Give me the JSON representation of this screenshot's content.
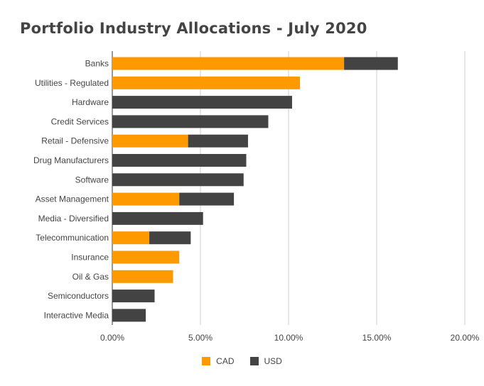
{
  "chart_data": {
    "type": "bar",
    "orientation": "horizontal",
    "stacked": true,
    "title": "Portfolio Industry Allocations - July 2020",
    "xlabel": "",
    "ylabel": "",
    "xlim": [
      0,
      20
    ],
    "x_ticks": [
      "0.00%",
      "5.00%",
      "10.00%",
      "15.00%",
      "20.00%"
    ],
    "grid": "vertical",
    "legend_position": "bottom",
    "categories": [
      "Banks",
      "Utilities - Regulated",
      "Hardware",
      "Credit Services",
      "Retail - Defensive",
      "Drug Manufacturers",
      "Software",
      "Asset Management",
      "Media - Diversified",
      "Telecommunication",
      "Insurance",
      "Oil & Gas",
      "Semiconductors",
      "Interactive Media"
    ],
    "series": [
      {
        "name": "CAD",
        "color": "#ff9900",
        "values": [
          13.15,
          10.65,
          0,
          0,
          4.3,
          0,
          0,
          3.8,
          0,
          2.1,
          3.8,
          3.45,
          0,
          0
        ]
      },
      {
        "name": "USD",
        "color": "#434343",
        "values": [
          3.05,
          0,
          10.2,
          8.85,
          3.4,
          7.6,
          7.45,
          3.1,
          5.15,
          2.35,
          0,
          0,
          2.4,
          1.9
        ]
      }
    ]
  }
}
